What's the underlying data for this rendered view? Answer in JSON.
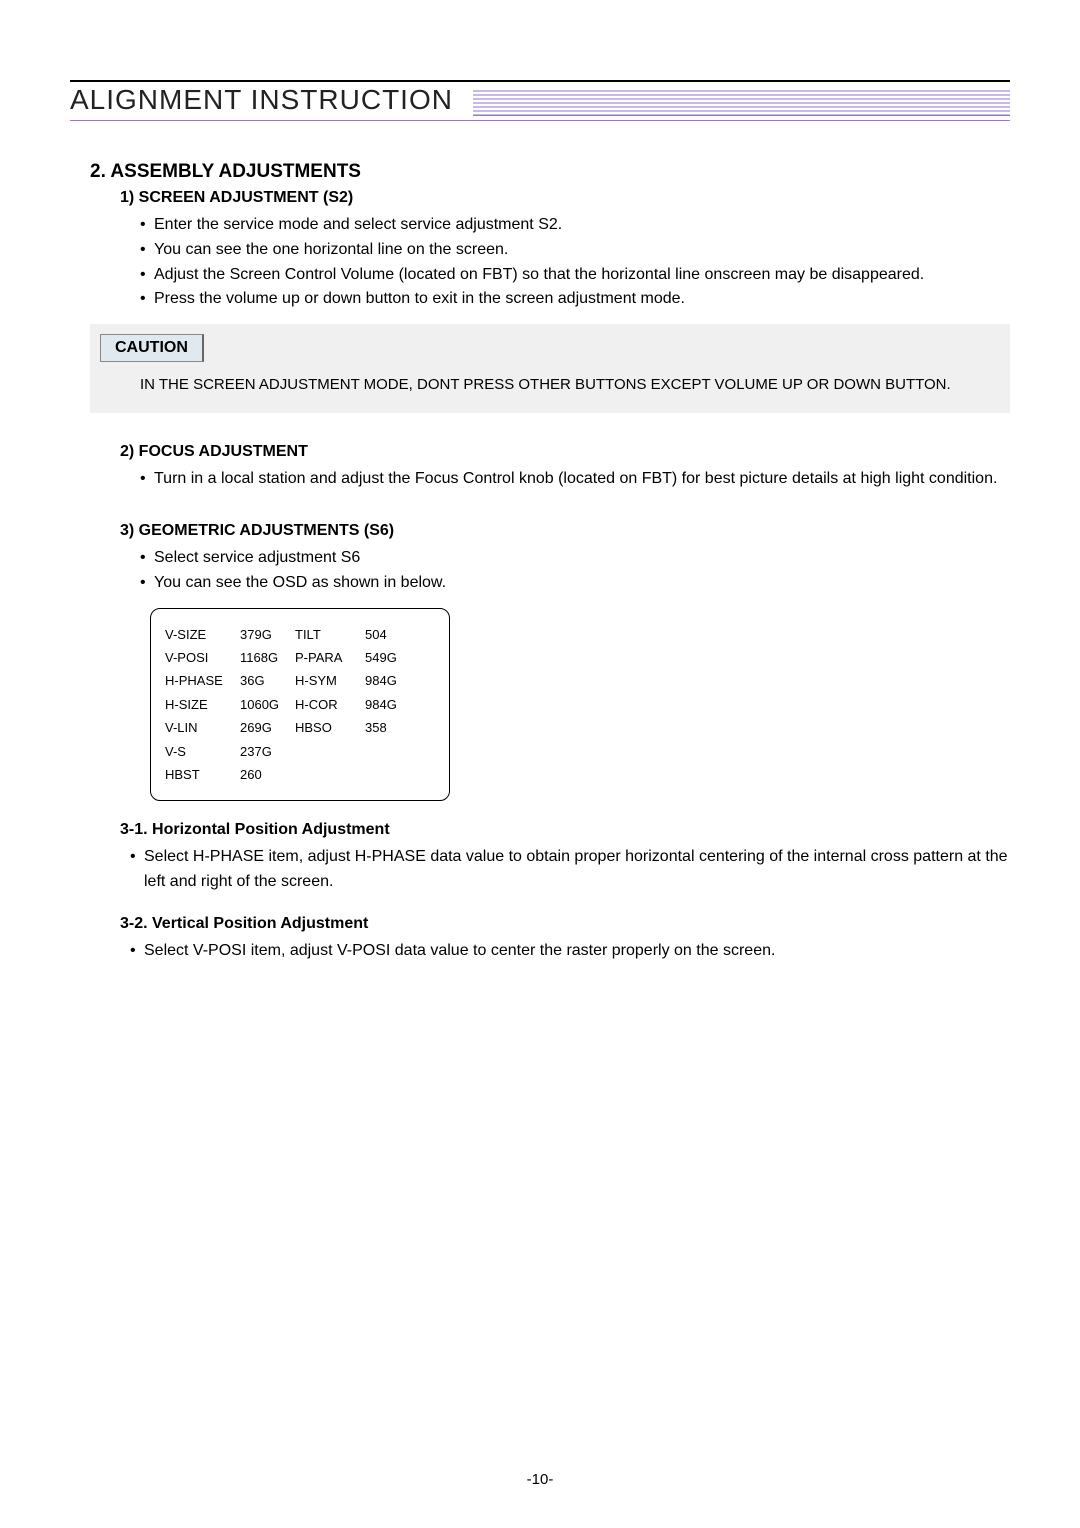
{
  "header": {
    "title": "ALIGNMENT INSTRUCTION"
  },
  "section2": {
    "title": "2. ASSEMBLY ADJUSTMENTS",
    "sub1": {
      "title": "1) SCREEN ADJUSTMENT (S2)",
      "items": [
        "Enter the service mode and select service adjustment S2.",
        "You can see the one horizontal line on the screen.",
        "Adjust the Screen Control Volume (located on FBT) so that the horizontal line onscreen may be disappeared.",
        "Press the volume up or down button to exit in the screen adjustment mode."
      ]
    },
    "caution": {
      "label": "CAUTION",
      "text": "IN THE SCREEN ADJUSTMENT MODE, DONT PRESS OTHER BUTTONS EXCEPT VOLUME UP OR DOWN BUTTON."
    },
    "sub2": {
      "title": "2) FOCUS ADJUSTMENT",
      "items": [
        "Turn in a local station and adjust the Focus Control knob (located on FBT) for best picture details at high light condition."
      ]
    },
    "sub3": {
      "title": "3) GEOMETRIC ADJUSTMENTS (S6)",
      "items": [
        "Select service adjustment S6",
        "You can see the OSD as shown in below."
      ],
      "osd": {
        "rows": [
          {
            "c1": "V-SIZE",
            "c2": "379G",
            "c3": "TILT",
            "c4": "504"
          },
          {
            "c1": "V-POSI",
            "c2": "1168G",
            "c3": "P-PARA",
            "c4": "549G"
          },
          {
            "c1": "H-PHASE",
            "c2": "36G",
            "c3": "H-SYM",
            "c4": "984G"
          },
          {
            "c1": "H-SIZE",
            "c2": "1060G",
            "c3": "H-COR",
            "c4": "984G"
          },
          {
            "c1": "V-LIN",
            "c2": "269G",
            "c3": "HBSO",
            "c4": "358"
          },
          {
            "c1": "V-S",
            "c2": "237G",
            "c3": "",
            "c4": ""
          },
          {
            "c1": "HBST",
            "c2": "260",
            "c3": "",
            "c4": ""
          }
        ]
      },
      "sub31": {
        "title": "3-1. Horizontal Position Adjustment",
        "items": [
          "Select H-PHASE item, adjust H-PHASE  data value to obtain proper horizontal centering of the internal cross pattern at the left and right of the screen."
        ]
      },
      "sub32": {
        "title": "3-2. Vertical Position Adjustment",
        "items": [
          "Select V-POSI item, adjust V-POSI  data value to center the raster properly on the screen."
        ]
      }
    }
  },
  "page_num": "-10-",
  "colors": {
    "accent": "#9878c8",
    "caution_bg": "#f0f0f0",
    "caution_label_bg": "#e0e8f0"
  }
}
